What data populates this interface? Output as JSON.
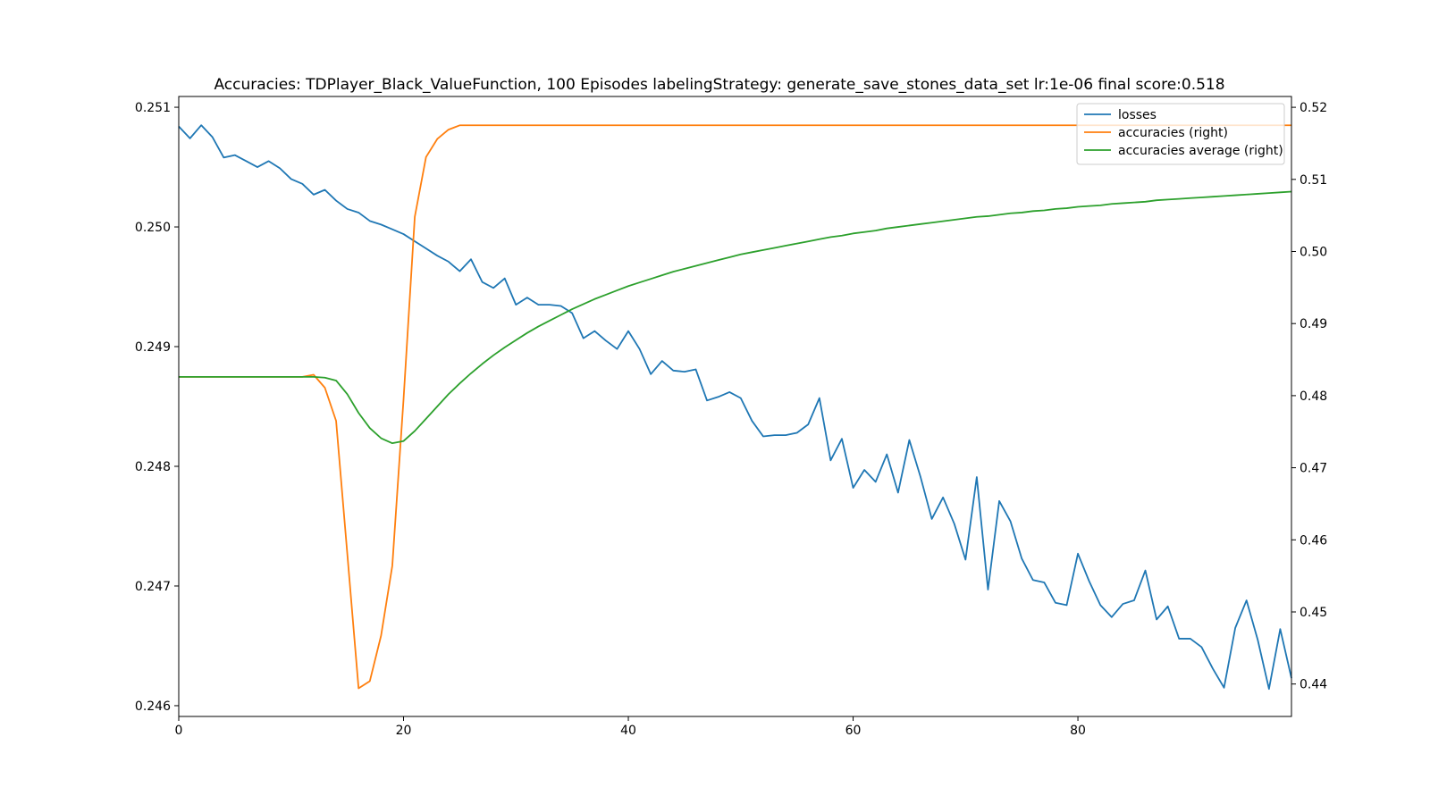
{
  "chart_data": {
    "type": "line",
    "title": "Accuracies: TDPlayer_Black_ValueFunction, 100 Episodes labelingStrategy: generate_save_stones_data_set lr:1e-06 final score:0.518",
    "xlabel": "",
    "ylabel": "",
    "xlim": [
      0,
      99
    ],
    "ylim_left": [
      0.24591,
      0.25109
    ],
    "ylim_right": [
      0.4355,
      0.5215
    ],
    "x_ticks": [
      "0",
      "20",
      "40",
      "60",
      "80"
    ],
    "y_ticks_left": [
      "0.246",
      "0.247",
      "0.248",
      "0.249",
      "0.250",
      "0.251"
    ],
    "y_ticks_right": [
      "0.44",
      "0.45",
      "0.46",
      "0.47",
      "0.48",
      "0.49",
      "0.50",
      "0.51",
      "0.52"
    ],
    "grid": false,
    "legend_position": "upper right",
    "series": [
      {
        "name": "losses",
        "axis": "left",
        "color": "#1f77b4",
        "values": [
          0.25084,
          0.25074,
          0.25085,
          0.25075,
          0.25058,
          0.2506,
          0.25055,
          0.2505,
          0.25055,
          0.25049,
          0.2504,
          0.25036,
          0.25027,
          0.25031,
          0.25022,
          0.25015,
          0.25012,
          0.25005,
          0.25002,
          0.24998,
          0.24994,
          0.24988,
          0.24982,
          0.24976,
          0.24971,
          0.24963,
          0.24973,
          0.24954,
          0.24949,
          0.24957,
          0.24935,
          0.24941,
          0.24935,
          0.24935,
          0.24934,
          0.24928,
          0.24907,
          0.24913,
          0.24905,
          0.24898,
          0.24913,
          0.24898,
          0.24877,
          0.24888,
          0.2488,
          0.24879,
          0.24881,
          0.24855,
          0.24858,
          0.24862,
          0.24857,
          0.24838,
          0.24825,
          0.24826,
          0.24826,
          0.24828,
          0.24835,
          0.24857,
          0.24805,
          0.24823,
          0.24782,
          0.24797,
          0.24787,
          0.2481,
          0.24778,
          0.24822,
          0.24791,
          0.24756,
          0.24774,
          0.24752,
          0.24722,
          0.24791,
          0.24697,
          0.24771,
          0.24754,
          0.24723,
          0.24705,
          0.24703,
          0.24686,
          0.24684,
          0.24727,
          0.24704,
          0.24684,
          0.24674,
          0.24685,
          0.24688,
          0.24713,
          0.24672,
          0.24683,
          0.24656,
          0.24656,
          0.24649,
          0.24631,
          0.24615,
          0.24665,
          0.24688,
          0.24655,
          0.24614,
          0.24664,
          0.24623
        ]
      },
      {
        "name": "accuracies (right)",
        "axis": "right",
        "color": "#ff7f0e",
        "values": [
          0.4826,
          0.4826,
          0.4826,
          0.4826,
          0.4826,
          0.4826,
          0.4826,
          0.4826,
          0.4826,
          0.4826,
          0.4826,
          0.4826,
          0.4829,
          0.4811,
          0.4765,
          0.458,
          0.4394,
          0.4404,
          0.4467,
          0.4564,
          0.4795,
          0.5048,
          0.5131,
          0.5156,
          0.5169,
          0.5175,
          0.5175,
          0.5175,
          0.5175,
          0.5175,
          0.5175,
          0.5175,
          0.5175,
          0.5175,
          0.5175,
          0.5175,
          0.5175,
          0.5175,
          0.5175,
          0.5175,
          0.5175,
          0.5175,
          0.5175,
          0.5175,
          0.5175,
          0.5175,
          0.5175,
          0.5175,
          0.5175,
          0.5175,
          0.5175,
          0.5175,
          0.5175,
          0.5175,
          0.5175,
          0.5175,
          0.5175,
          0.5175,
          0.5175,
          0.5175,
          0.5175,
          0.5175,
          0.5175,
          0.5175,
          0.5175,
          0.5175,
          0.5175,
          0.5175,
          0.5175,
          0.5175,
          0.5175,
          0.5175,
          0.5175,
          0.5175,
          0.5175,
          0.5175,
          0.5175,
          0.5175,
          0.5175,
          0.5175,
          0.5175,
          0.5175,
          0.5175,
          0.5175,
          0.5175,
          0.5175,
          0.5175,
          0.5175,
          0.5175,
          0.5175,
          0.5175,
          0.5175,
          0.5175,
          0.5175,
          0.5175,
          0.5175,
          0.5175,
          0.5175,
          0.5175,
          0.5175
        ]
      },
      {
        "name": "accuracies average (right)",
        "axis": "right",
        "color": "#2ca02c",
        "values": [
          0.4826,
          0.4826,
          0.4826,
          0.4826,
          0.4826,
          0.4826,
          0.4826,
          0.4826,
          0.4826,
          0.4826,
          0.4826,
          0.4826,
          0.4826,
          0.4825,
          0.4821,
          0.4802,
          0.4776,
          0.4755,
          0.4741,
          0.4734,
          0.4737,
          0.4751,
          0.4768,
          0.4785,
          0.4802,
          0.4817,
          0.4831,
          0.4844,
          0.4856,
          0.4867,
          0.4877,
          0.4887,
          0.4896,
          0.4904,
          0.4912,
          0.492,
          0.4927,
          0.4934,
          0.494,
          0.4946,
          0.4952,
          0.4957,
          0.4962,
          0.4967,
          0.4972,
          0.4976,
          0.498,
          0.4984,
          0.4988,
          0.4992,
          0.4996,
          0.4999,
          0.5002,
          0.5005,
          0.5008,
          0.5011,
          0.5014,
          0.5017,
          0.502,
          0.5022,
          0.5025,
          0.5027,
          0.5029,
          0.5032,
          0.5034,
          0.5036,
          0.5038,
          0.504,
          0.5042,
          0.5044,
          0.5046,
          0.5048,
          0.5049,
          0.5051,
          0.5053,
          0.5054,
          0.5056,
          0.5057,
          0.5059,
          0.506,
          0.5062,
          0.5063,
          0.5064,
          0.5066,
          0.5067,
          0.5068,
          0.5069,
          0.5071,
          0.5072,
          0.5073,
          0.5074,
          0.5075,
          0.5076,
          0.5077,
          0.5078,
          0.5079,
          0.508,
          0.5081,
          0.5082,
          0.5083
        ]
      }
    ]
  }
}
